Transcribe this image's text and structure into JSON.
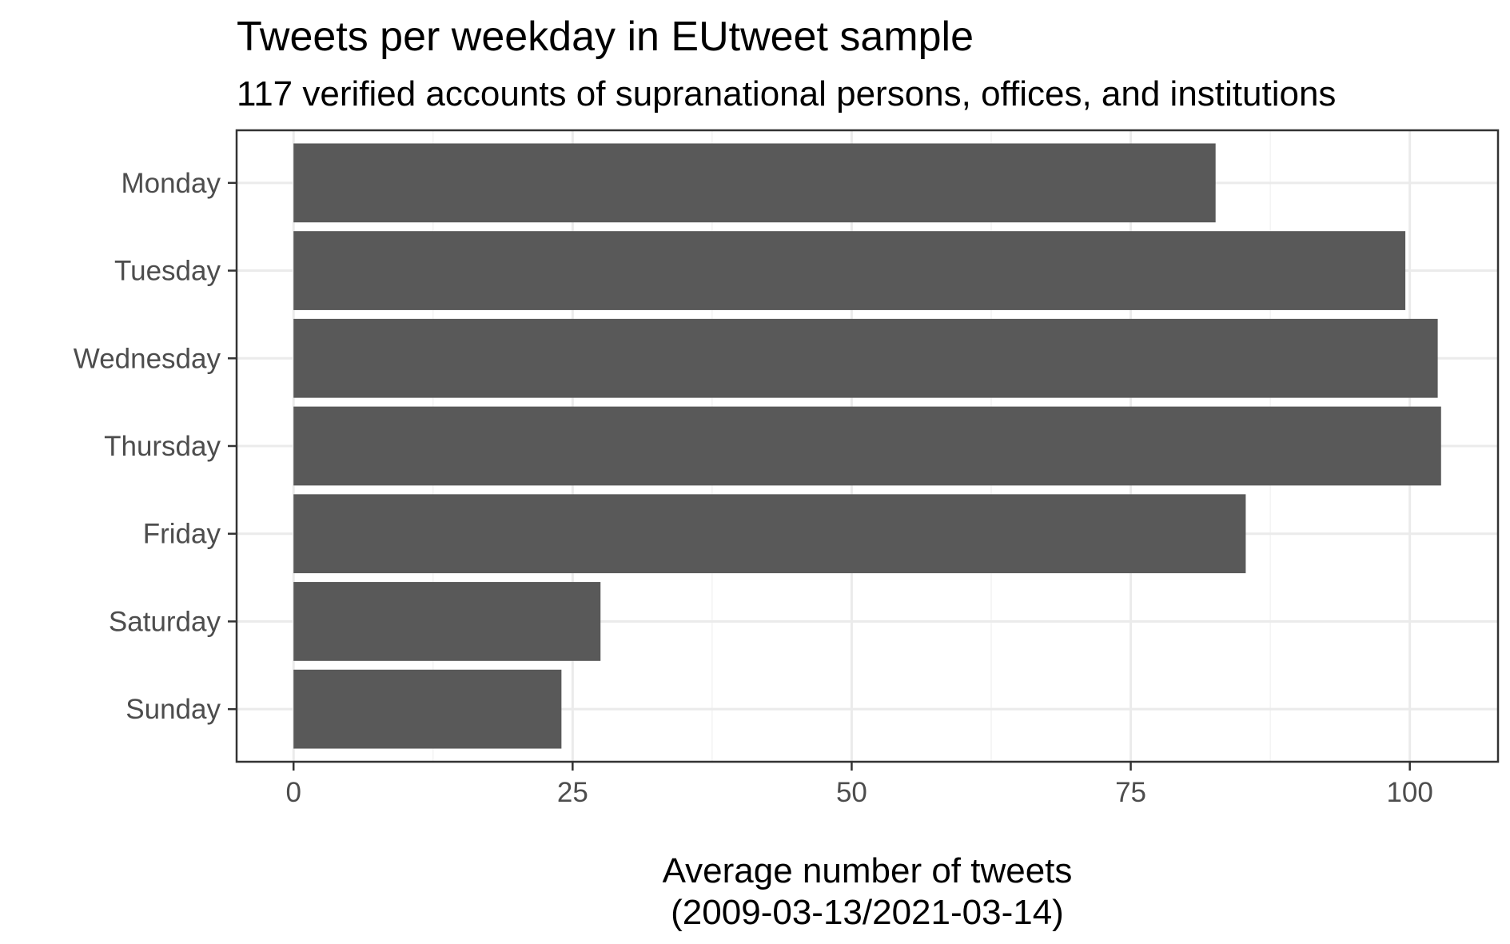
{
  "chart_data": {
    "type": "bar",
    "orientation": "horizontal",
    "title": "Tweets per weekday in EUtweet sample",
    "subtitle": "117 verified accounts of supranational persons, offices, and institutions",
    "xlabel_line1": "Average number of tweets",
    "xlabel_line2": "(2009-03-13/2021-03-14)",
    "ylabel": "",
    "categories": [
      "Monday",
      "Tuesday",
      "Wednesday",
      "Thursday",
      "Friday",
      "Saturday",
      "Sunday"
    ],
    "values": [
      82.6,
      99.6,
      102.5,
      102.8,
      85.3,
      27.5,
      24.0
    ],
    "xlim": [
      -5.1,
      107.9
    ],
    "xticks": [
      0,
      25,
      50,
      75,
      100
    ],
    "xtick_labels": [
      "0",
      "25",
      "50",
      "75",
      "100"
    ],
    "grid": true,
    "legend": "none",
    "bar_color": "#595959",
    "grid_major_color": "#ebebeb",
    "grid_minor_color": "#f3f3f3",
    "panel_border_color": "#333333"
  }
}
